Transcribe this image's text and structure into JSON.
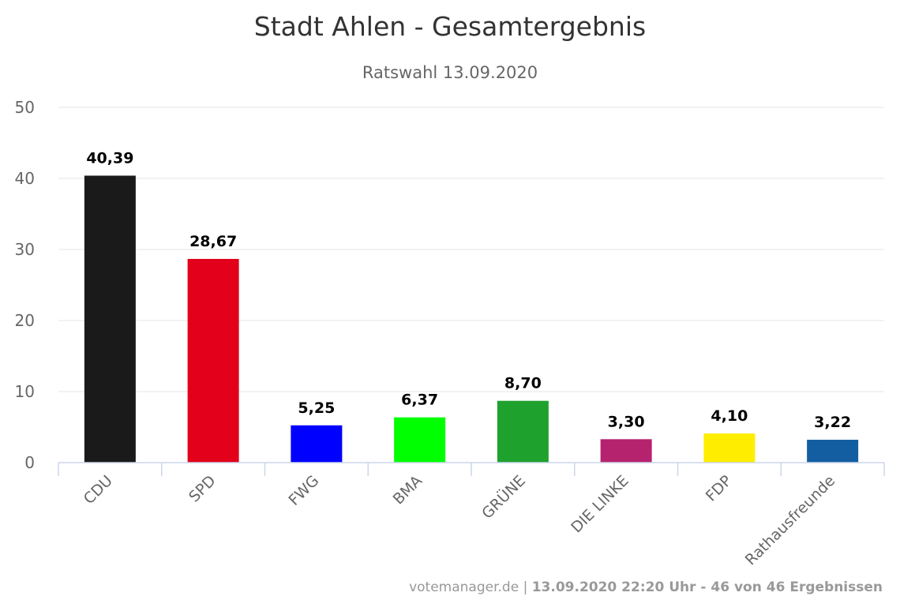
{
  "chart_data": {
    "type": "bar",
    "title": "Stadt Ahlen - Gesamtergebnis",
    "subtitle": "Ratswahl 13.09.2020",
    "categories": [
      "CDU",
      "SPD",
      "FWG",
      "BMA",
      "GRÜNE",
      "DIE LINKE",
      "FDP",
      "Rathausfreunde"
    ],
    "values": [
      40.39,
      28.67,
      5.25,
      6.37,
      8.7,
      3.3,
      4.1,
      3.22
    ],
    "data_labels": [
      "40,39",
      "28,67",
      "5,25",
      "6,37",
      "8,70",
      "3,30",
      "4,10",
      "3,22"
    ],
    "colors": [
      "#1a1a1a",
      "#e2001a",
      "#0000ff",
      "#00ff00",
      "#1fa12e",
      "#b5226e",
      "#ffed00",
      "#135ea1"
    ],
    "yticks": [
      0,
      10,
      20,
      30,
      40,
      50
    ],
    "ylim": [
      0,
      50
    ],
    "xlabel": "",
    "ylabel": "",
    "grid": true,
    "legend": "none"
  },
  "credits": {
    "source": "votemanager.de",
    "separator": " | ",
    "status": "13.09.2020 22:20 Uhr - 46 von 46 Ergebnissen"
  }
}
